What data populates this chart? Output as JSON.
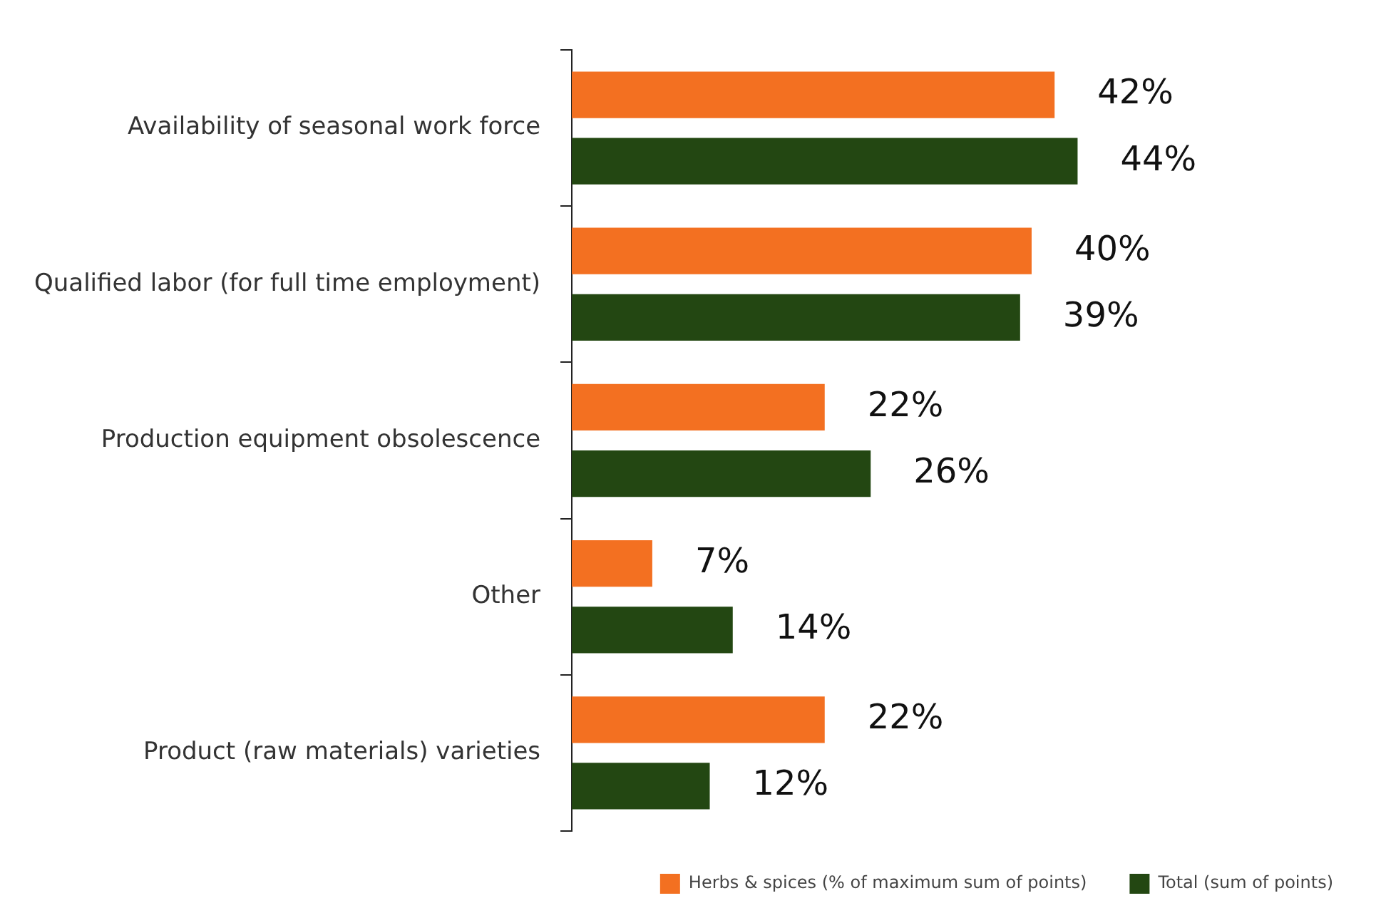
{
  "chart_data": {
    "type": "bar",
    "orientation": "horizontal",
    "categories": [
      "Availability of seasonal work force",
      "Qualified labor (for full time employment)",
      "Production equipment obsolescence",
      "Other",
      "Product (raw materials) varieties"
    ],
    "series": [
      {
        "name": "Herbs & spices (% of maximum sum of points)",
        "color": "#f37021",
        "values": [
          42,
          40,
          22,
          7,
          22
        ],
        "value_labels": [
          "42%",
          "40%",
          "22%",
          "7%",
          "22%"
        ]
      },
      {
        "name": "Total (sum of points)",
        "color": "#234712",
        "values": [
          44,
          39,
          26,
          14,
          12
        ],
        "value_labels": [
          "44%",
          "39%",
          "26%",
          "14%",
          "12%"
        ]
      }
    ],
    "legend": "bottom right",
    "grid": false
  }
}
